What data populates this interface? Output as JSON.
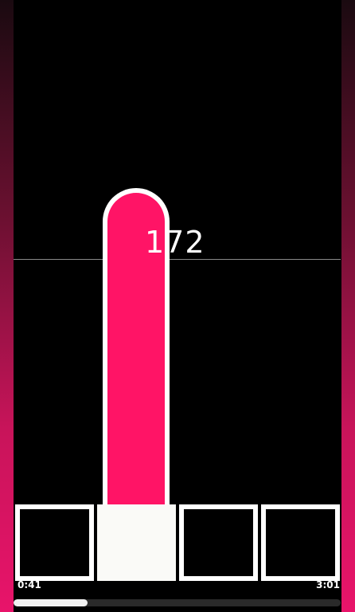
{
  "counter": {
    "value": "172"
  },
  "player": {
    "time_elapsed": "0:41",
    "time_total": "3:01",
    "progress_fraction": 0.2265
  },
  "tiles": [
    {
      "state": "empty"
    },
    {
      "state": "filled"
    },
    {
      "state": "empty"
    },
    {
      "state": "empty"
    }
  ],
  "colors": {
    "accent": "#ff1466",
    "background": "#000000",
    "tile_border": "#ffffff"
  }
}
